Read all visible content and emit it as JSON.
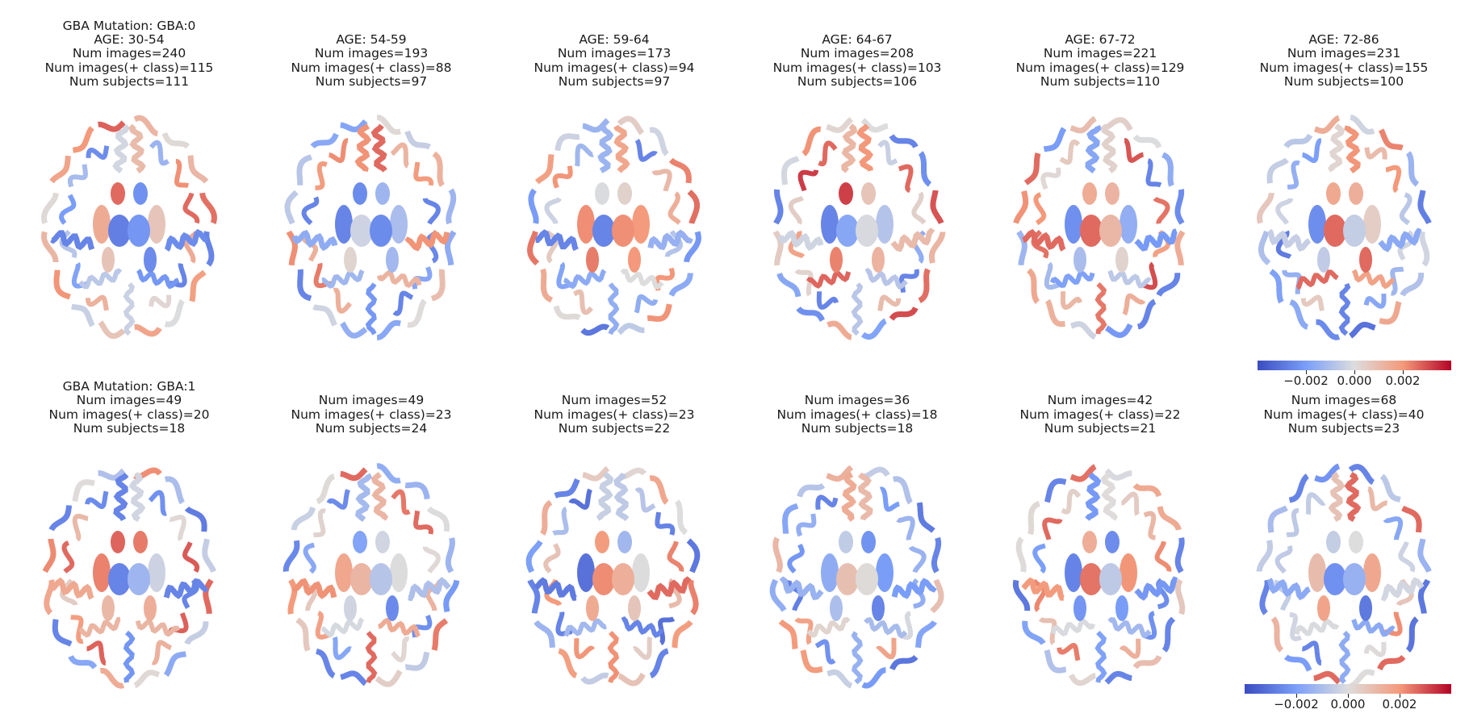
{
  "chart_data": {
    "type": "heatmap",
    "colormap": "coolwarm",
    "colorbar": {
      "range": [
        -0.004,
        0.004
      ],
      "tick_labels": [
        "−0.002",
        "0.000",
        "0.002"
      ],
      "ticks": [
        -0.002,
        0.0,
        0.002
      ]
    },
    "rows": [
      {
        "panels": [
          {
            "lines": [
              "GBA Mutation: GBA:0",
              "AGE: 30-54",
              "Num images=240",
              "Num images(+ class)=115",
              "Num subjects=111"
            ],
            "bias": 0.0
          },
          {
            "lines": [
              "AGE: 54-59",
              "Num images=193",
              "Num images(+ class)=88",
              "Num subjects=97"
            ],
            "bias": 0.05
          },
          {
            "lines": [
              "AGE: 59-64",
              "Num images=173",
              "Num images(+ class)=94",
              "Num subjects=97"
            ],
            "bias": -0.05
          },
          {
            "lines": [
              "AGE: 64-67",
              "Num images=208",
              "Num images(+ class)=103",
              "Num subjects=106"
            ],
            "bias": 0.1
          },
          {
            "lines": [
              "AGE: 67-72",
              "Num images=221",
              "Num images(+ class)=129",
              "Num subjects=110"
            ],
            "bias": 0.05
          },
          {
            "lines": [
              "AGE: 72-86",
              "Num images=231",
              "Num images(+ class)=155",
              "Num subjects=100"
            ],
            "bias": -0.05
          }
        ]
      },
      {
        "panels": [
          {
            "lines": [
              "GBA Mutation: GBA:1",
              "Num images=49",
              "Num images(+ class)=20",
              "Num subjects=18"
            ],
            "bias": 0.0
          },
          {
            "lines": [
              "Num images=49",
              "Num images(+ class)=23",
              "Num subjects=24"
            ],
            "bias": 0.0
          },
          {
            "lines": [
              "Num images=52",
              "Num images(+ class)=23",
              "Num subjects=22"
            ],
            "bias": -0.08
          },
          {
            "lines": [
              "Num images=36",
              "Num images(+ class)=18",
              "Num subjects=18"
            ],
            "bias": -0.12
          },
          {
            "lines": [
              "Num images=42",
              "Num images(+ class)=22",
              "Num subjects=21"
            ],
            "bias": -0.05
          },
          {
            "lines": [
              "Num images=68",
              "Num images(+ class)=40",
              "Num subjects=23"
            ],
            "bias": -0.05
          }
        ]
      }
    ]
  },
  "colors": {
    "coolwarm_low": "#3b4cc0",
    "coolwarm_mid": "#dddddd",
    "coolwarm_high": "#b40426",
    "background": "#ffffff",
    "text": "#1a1a1a"
  }
}
